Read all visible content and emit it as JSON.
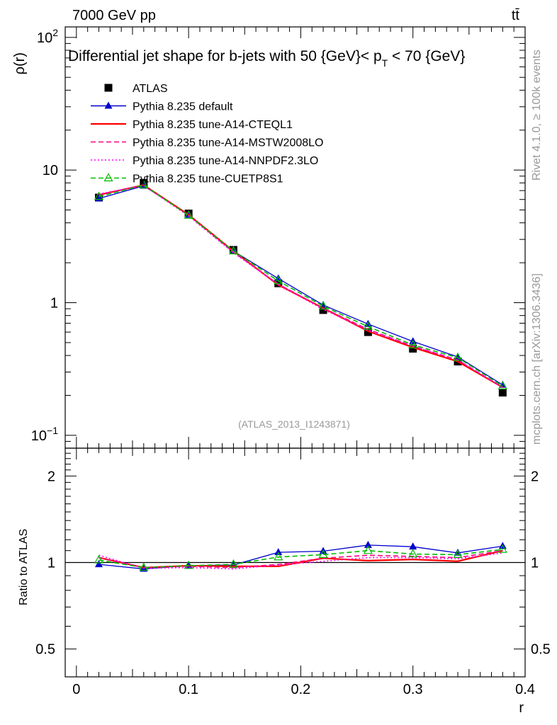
{
  "header": {
    "energy": "7000 GeV pp",
    "process": "tt̄"
  },
  "side_labels": {
    "rivet": "Rivet 4.1.0, ≥ 100k events",
    "mcplots": "mcplots.cern.ch [arXiv:1306.3436]"
  },
  "colors": {
    "atlas": "#000000",
    "default": "#0000cc",
    "cteql1": "#ff0000",
    "mstw": "#ff0080",
    "nnpdf": "#ff00ff",
    "cuetp8s1": "#00bb00"
  },
  "chart_data": [
    {
      "type": "line",
      "title": "Differential jet shape for b-jets with 50 {GeV}< p_T < 70 {GeV}",
      "title_parts": {
        "pre": "Differential jet shape for b-jets with 50 {GeV}< p",
        "sub": "T",
        "post": " < 70 {GeV}"
      },
      "ylabel": "ρ(r)",
      "yscale": "log",
      "ylim": [
        0.08,
        120
      ],
      "xlim": [
        -0.01,
        0.4
      ],
      "ytick_labels": [
        {
          "value": 100,
          "base": "10",
          "exp": "2"
        },
        {
          "value": 10,
          "base": "10",
          "exp": ""
        },
        {
          "value": 1,
          "base": "1",
          "exp": ""
        },
        {
          "value": 0.1,
          "base": "10",
          "exp": "−1"
        }
      ],
      "watermark": "(ATLAS_2013_I1243871)",
      "x": [
        0.02,
        0.06,
        0.1,
        0.14,
        0.18,
        0.22,
        0.26,
        0.3,
        0.34,
        0.38
      ],
      "series": [
        {
          "name": "ATLAS",
          "key": "atlas",
          "style": "marker-square",
          "values": [
            6.2,
            8.0,
            4.7,
            2.5,
            1.4,
            0.88,
            0.6,
            0.45,
            0.36,
            0.21
          ]
        },
        {
          "name": "Pythia 8.235 default",
          "key": "default",
          "style": "solid-triangle",
          "values": [
            6.1,
            7.6,
            4.6,
            2.45,
            1.52,
            0.96,
            0.69,
            0.51,
            0.39,
            0.24
          ]
        },
        {
          "name": "Pythia 8.235 tune-A14-CTEQL1",
          "key": "cteql1",
          "style": "solid",
          "values": [
            6.5,
            7.7,
            4.6,
            2.45,
            1.36,
            0.91,
            0.61,
            0.46,
            0.36,
            0.23
          ]
        },
        {
          "name": "Pythia 8.235 tune-A14-MSTW2008LO",
          "key": "mstw",
          "style": "dashed",
          "values": [
            6.45,
            7.7,
            4.55,
            2.4,
            1.38,
            0.91,
            0.63,
            0.47,
            0.37,
            0.23
          ]
        },
        {
          "name": "Pythia 8.235 tune-A14-NNPDF2.3LO",
          "key": "nnpdf",
          "style": "dotted",
          "values": [
            6.6,
            7.65,
            4.5,
            2.38,
            1.37,
            0.89,
            0.62,
            0.47,
            0.37,
            0.23
          ]
        },
        {
          "name": "Pythia 8.235 tune-CUETP8S1",
          "key": "cuetp8s1",
          "style": "dashed-open-triangle",
          "values": [
            6.3,
            7.7,
            4.55,
            2.45,
            1.46,
            0.94,
            0.66,
            0.48,
            0.385,
            0.235
          ]
        }
      ]
    },
    {
      "type": "line",
      "title": "",
      "ylabel": "Ratio to ATLAS",
      "xlabel": "r",
      "yscale": "log",
      "ylim": [
        0.4,
        2.5
      ],
      "xlim": [
        -0.01,
        0.4
      ],
      "ytick_labels": [
        {
          "value": 2,
          "label": "2"
        },
        {
          "value": 1,
          "label": "1"
        },
        {
          "value": 0.5,
          "label": "0.5"
        }
      ],
      "xtick_labels": [
        {
          "value": 0,
          "label": "0"
        },
        {
          "value": 0.1,
          "label": "0.1"
        },
        {
          "value": 0.2,
          "label": "0.2"
        },
        {
          "value": 0.3,
          "label": "0.3"
        },
        {
          "value": 0.4,
          "label": "0.4"
        }
      ],
      "reference": 1,
      "x": [
        0.02,
        0.06,
        0.1,
        0.14,
        0.18,
        0.22,
        0.26,
        0.3,
        0.34,
        0.38
      ],
      "series": [
        {
          "name": "Pythia 8.235 default",
          "key": "default",
          "style": "solid-triangle",
          "values": [
            0.985,
            0.95,
            0.975,
            0.98,
            1.085,
            1.095,
            1.15,
            1.135,
            1.08,
            1.14
          ]
        },
        {
          "name": "Pythia 8.235 tune-A14-CTEQL1",
          "key": "cteql1",
          "style": "solid",
          "values": [
            1.04,
            0.96,
            0.975,
            0.97,
            0.97,
            1.035,
            1.015,
            1.025,
            1.01,
            1.1
          ]
        },
        {
          "name": "Pythia 8.235 tune-A14-MSTW2008LO",
          "key": "mstw",
          "style": "dashed",
          "values": [
            1.04,
            0.96,
            0.97,
            0.96,
            0.985,
            1.035,
            1.06,
            1.05,
            1.04,
            1.1
          ]
        },
        {
          "name": "Pythia 8.235 tune-A14-NNPDF2.3LO",
          "key": "nnpdf",
          "style": "dotted",
          "values": [
            1.06,
            0.955,
            0.96,
            0.95,
            0.98,
            1.01,
            1.04,
            1.04,
            1.03,
            1.08
          ]
        },
        {
          "name": "Pythia 8.235 tune-CUETP8S1",
          "key": "cuetp8s1",
          "style": "dashed-open-triangle",
          "values": [
            1.02,
            0.96,
            0.975,
            0.985,
            1.045,
            1.065,
            1.1,
            1.07,
            1.065,
            1.11
          ]
        }
      ]
    }
  ]
}
